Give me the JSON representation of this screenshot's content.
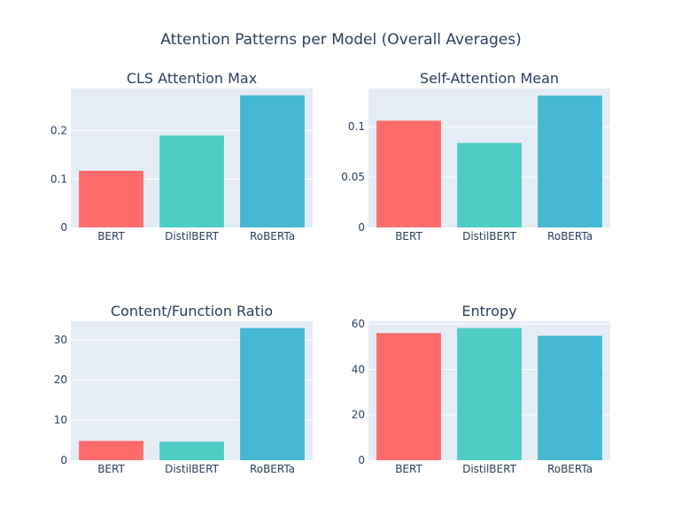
{
  "figure": {
    "title": "Attention Patterns per Model (Overall Averages)"
  },
  "colors": {
    "plot_bg": "#E5ECF6",
    "grid": "#ffffff",
    "text": "#2a3f5f",
    "BERT": "#FF6B6B",
    "DistilBERT": "#4ECDC4",
    "RoBERTa": "#45B7D1"
  },
  "chart_data": [
    {
      "type": "bar",
      "title": "CLS Attention Max",
      "categories": [
        "BERT",
        "DistilBERT",
        "RoBERTa"
      ],
      "values": [
        0.117,
        0.19,
        0.273
      ],
      "ylim": [
        0,
        0.287
      ],
      "yticks": [
        0,
        0.1,
        0.2
      ],
      "ytick_labels": [
        "0",
        "0.1",
        "0.2"
      ],
      "grid": true
    },
    {
      "type": "bar",
      "title": "Self-Attention Mean",
      "categories": [
        "BERT",
        "DistilBERT",
        "RoBERTa"
      ],
      "values": [
        0.106,
        0.084,
        0.131
      ],
      "ylim": [
        0,
        0.138
      ],
      "yticks": [
        0,
        0.05,
        0.1
      ],
      "ytick_labels": [
        "0",
        "0.05",
        "0.1"
      ],
      "grid": true
    },
    {
      "type": "bar",
      "title": "Content/Function Ratio",
      "categories": [
        "BERT",
        "DistilBERT",
        "RoBERTa"
      ],
      "values": [
        4.8,
        4.6,
        32.9
      ],
      "ylim": [
        0,
        34.6
      ],
      "yticks": [
        0,
        10,
        20,
        30
      ],
      "ytick_labels": [
        "0",
        "10",
        "20",
        "30"
      ],
      "grid": true
    },
    {
      "type": "bar",
      "title": "Entropy",
      "categories": [
        "BERT",
        "DistilBERT",
        "RoBERTa"
      ],
      "values": [
        56.0,
        58.2,
        54.8
      ],
      "ylim": [
        0,
        61.2
      ],
      "yticks": [
        0,
        20,
        40,
        60
      ],
      "ytick_labels": [
        "0",
        "20",
        "40",
        "60"
      ],
      "grid": true
    }
  ]
}
